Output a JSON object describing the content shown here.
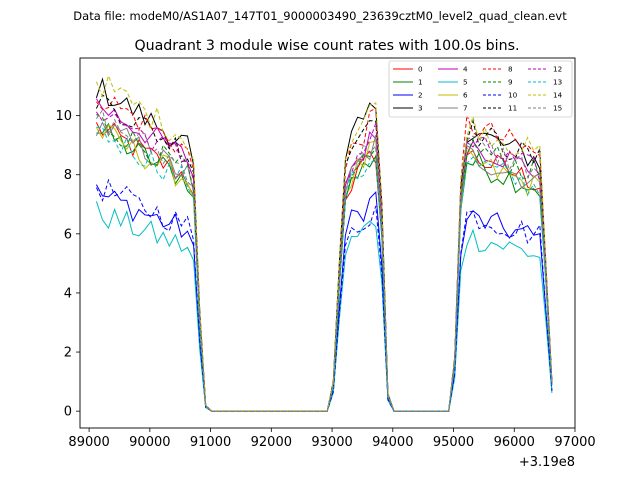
{
  "chart_data": {
    "type": "line",
    "suptitle": "Data file: modeM0/AS1A07_147T01_9000003490_23639cztM0_level2_quad_clean.evt",
    "title": "Quadrant 3 module wise count rates with 100.0s bins.",
    "xlabel": "",
    "ylabel": "",
    "offset_label": "+3.19e8",
    "xlim": [
      88850,
      97000
    ],
    "ylim": [
      -0.57,
      11.95
    ],
    "xticks": [
      89000,
      90000,
      91000,
      92000,
      93000,
      94000,
      95000,
      96000,
      97000
    ],
    "xtick_labels": [
      "89000",
      "90000",
      "91000",
      "92000",
      "93000",
      "94000",
      "95000",
      "96000",
      "97000"
    ],
    "yticks": [
      0,
      2,
      4,
      6,
      8,
      10
    ],
    "ytick_labels": [
      "0",
      "2",
      "4",
      "6",
      "8",
      "10"
    ],
    "legend_position": "top-right",
    "legend_columns": 4,
    "segments": [
      {
        "start": 89120,
        "end": 90920,
        "fall": [
          0.85,
          0.35,
          0.02
        ]
      },
      {
        "start": 93020,
        "rise": [
          0.1,
          0.5,
          0.85
        ],
        "end": 94020,
        "fall": [
          0.7,
          0.06,
          0.0
        ]
      },
      {
        "start": 95020,
        "rise": [
          0.2,
          0.85
        ],
        "end": 96620,
        "fall": [
          0.55,
          0.11
        ]
      }
    ],
    "series": [
      {
        "name": "0",
        "color": "#ff0000",
        "dash": "solid",
        "segment_levels": [
          8.6,
          8.4,
          8.2
        ]
      },
      {
        "name": "1",
        "color": "#008000",
        "dash": "solid",
        "segment_levels": [
          8.5,
          8.4,
          8.0
        ]
      },
      {
        "name": "2",
        "color": "#0000ff",
        "dash": "solid",
        "segment_levels": [
          6.6,
          7.0,
          6.2
        ]
      },
      {
        "name": "3",
        "color": "#000000",
        "dash": "solid",
        "segment_levels": [
          9.8,
          10.0,
          9.0
        ]
      },
      {
        "name": "4",
        "color": "#bf00bf",
        "dash": "solid",
        "segment_levels": [
          9.3,
          9.0,
          8.6
        ]
      },
      {
        "name": "5",
        "color": "#00bfbf",
        "dash": "solid",
        "segment_levels": [
          6.0,
          6.2,
          5.6
        ]
      },
      {
        "name": "6",
        "color": "#bfbf00",
        "dash": "solid",
        "segment_levels": [
          8.5,
          8.6,
          8.0
        ]
      },
      {
        "name": "7",
        "color": "#808080",
        "dash": "solid",
        "segment_levels": [
          8.7,
          8.7,
          8.2
        ]
      },
      {
        "name": "8",
        "color": "#ff0000",
        "dash": "dashed",
        "segment_levels": [
          9.6,
          9.6,
          9.2
        ]
      },
      {
        "name": "9",
        "color": "#008000",
        "dash": "dashed",
        "segment_levels": [
          8.8,
          8.4,
          8.5
        ]
      },
      {
        "name": "10",
        "color": "#0000ff",
        "dash": "dashed",
        "segment_levels": [
          6.8,
          6.6,
          6.3
        ]
      },
      {
        "name": "11",
        "color": "#000000",
        "dash": "dashed",
        "segment_levels": [
          9.5,
          9.8,
          9.0
        ]
      },
      {
        "name": "12",
        "color": "#bf00bf",
        "dash": "dashed",
        "segment_levels": [
          9.2,
          9.1,
          8.6
        ]
      },
      {
        "name": "13",
        "color": "#00bfbf",
        "dash": "dashed",
        "segment_levels": [
          8.5,
          8.4,
          8.0
        ]
      },
      {
        "name": "14",
        "color": "#bfbf00",
        "dash": "dashed",
        "segment_levels": [
          10.0,
          10.0,
          9.2
        ]
      },
      {
        "name": "15",
        "color": "#808080",
        "dash": "dashed",
        "segment_levels": [
          8.9,
          8.9,
          8.6
        ]
      }
    ]
  }
}
